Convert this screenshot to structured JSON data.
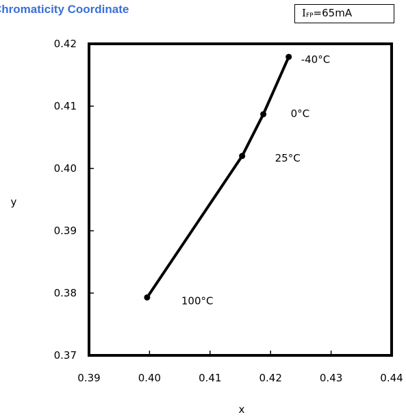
{
  "chart_data": {
    "type": "line",
    "title": "Chromaticity Coordinate",
    "condition": {
      "symbol": "I",
      "subscript": "FP",
      "value": "=65mA"
    },
    "xlabel": "x",
    "ylabel": "y",
    "xlim": [
      0.39,
      0.44
    ],
    "ylim": [
      0.37,
      0.42
    ],
    "xticks": [
      "0.39",
      "0.40",
      "0.41",
      "0.42",
      "0.43",
      "0.44"
    ],
    "yticks": [
      "0.37",
      "0.38",
      "0.39",
      "0.40",
      "0.41",
      "0.42"
    ],
    "grid": false,
    "series": [
      {
        "color": "#000000",
        "points": [
          {
            "x": 0.3996,
            "y": 0.3793,
            "label": "100°C"
          },
          {
            "x": 0.4153,
            "y": 0.402,
            "label": "25°C"
          },
          {
            "x": 0.4188,
            "y": 0.4087,
            "label": "0°C"
          },
          {
            "x": 0.423,
            "y": 0.4179,
            "label": "-40°C"
          }
        ]
      }
    ]
  }
}
